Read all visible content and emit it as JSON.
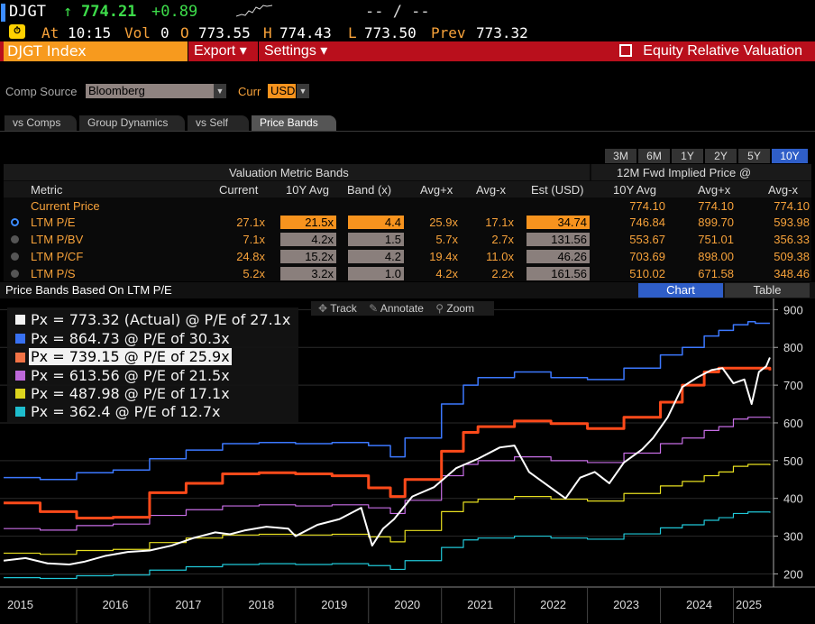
{
  "ticker": {
    "symbol": "DJGT",
    "arrow": "↑",
    "last": "774.21",
    "change": "+0.89",
    "range_text": "-- / --"
  },
  "quote": {
    "at_label": "At",
    "time": "10:15",
    "vol_label": "Vol",
    "vol": "0",
    "o_label": "O",
    "open": "773.55",
    "h_label": "H",
    "high": "774.43",
    "l_label": "L",
    "low": "773.50",
    "prev_label": "Prev",
    "prev": "773.32"
  },
  "menu": {
    "title": "DJGT Index",
    "export": "Export ▾",
    "settings": "Settings ▾",
    "function_name": "Equity Relative Valuation"
  },
  "filters": {
    "comp_source_label": "Comp Source",
    "comp_source": "Bloomberg",
    "curr_label": "Curr",
    "curr": "USD"
  },
  "tabs": [
    "vs Comps",
    "Group Dynamics",
    "vs Self",
    "Price Bands"
  ],
  "periods": [
    "3M",
    "6M",
    "1Y",
    "2Y",
    "5Y",
    "10Y"
  ],
  "table": {
    "group1": "Valuation Metric Bands",
    "group2": "12M Fwd Implied Price @",
    "headers": [
      "Metric",
      "Current",
      "10Y Avg",
      "Band (x)",
      "Avg+x",
      "Avg-x",
      "Est (USD)",
      "10Y Avg",
      "Avg+x",
      "Avg-x"
    ],
    "current_price": {
      "label": "Current Price",
      "v1": "774.10",
      "v2": "774.10",
      "v3": "774.10"
    },
    "rows": [
      {
        "metric": "LTM P/E",
        "current": "27.1x",
        "avg": "21.5x",
        "band": "4.4",
        "plus": "25.9x",
        "minus": "17.1x",
        "est": "34.74",
        "p_avg": "746.84",
        "p_plus": "899.70",
        "p_minus": "593.98"
      },
      {
        "metric": "LTM P/BV",
        "current": "7.1x",
        "avg": "4.2x",
        "band": "1.5",
        "plus": "5.7x",
        "minus": "2.7x",
        "est": "131.56",
        "p_avg": "553.67",
        "p_plus": "751.01",
        "p_minus": "356.33"
      },
      {
        "metric": "LTM P/CF",
        "current": "24.8x",
        "avg": "15.2x",
        "band": "4.2",
        "plus": "19.4x",
        "minus": "11.0x",
        "est": "46.26",
        "p_avg": "703.69",
        "p_plus": "898.00",
        "p_minus": "509.38"
      },
      {
        "metric": "LTM P/S",
        "current": "5.2x",
        "avg": "3.2x",
        "band": "1.0",
        "plus": "4.2x",
        "minus": "2.2x",
        "est": "161.56",
        "p_avg": "510.02",
        "p_plus": "671.58",
        "p_minus": "348.46"
      }
    ]
  },
  "chart_header": {
    "title": "Price Bands Based On LTM P/E",
    "chart_btn": "Chart",
    "table_btn": "Table"
  },
  "toolbar": {
    "track": "Track",
    "annotate": "Annotate",
    "zoom": "Zoom"
  },
  "colors": {
    "orange": "#f7931e",
    "red_bar": "#b90f1c",
    "blue_sel": "#2f5ec8",
    "amber": "#f7a23a"
  },
  "chart_data": {
    "type": "line",
    "ylim": [
      170,
      920
    ],
    "yticks": [
      200,
      300,
      400,
      500,
      600,
      700,
      800,
      900
    ],
    "xlim": [
      2014.95,
      2025.55
    ],
    "xticks": [
      "2015",
      "2016",
      "2017",
      "2018",
      "2019",
      "2020",
      "2021",
      "2022",
      "2023",
      "2024",
      "2025"
    ],
    "legend": [
      {
        "text": "Px = 773.32 (Actual) @ P/E of 27.1x",
        "color": "#ffffff"
      },
      {
        "text": "Px = 864.73 @ P/E of 30.3x",
        "color": "#3c78ff"
      },
      {
        "text": "Px = 739.15 @ P/E of 25.9x",
        "color": "#ff4a1a"
      },
      {
        "text": "Px = 613.56 @ P/E of 21.5x",
        "color": "#c86ee6"
      },
      {
        "text": "Px = 487.98 @ P/E of 17.1x",
        "color": "#e8e020"
      },
      {
        "text": "Px = 362.4 @ P/E of 12.7x",
        "color": "#20c8d8"
      }
    ],
    "series": [
      {
        "color": "#3c78ff",
        "width": 1.5,
        "x": [
          2015.0,
          2015.5,
          2016.0,
          2016.5,
          2017.0,
          2017.5,
          2018.0,
          2018.5,
          2019.0,
          2019.5,
          2020.0,
          2020.3,
          2020.5,
          2021.0,
          2021.3,
          2021.5,
          2022.0,
          2022.5,
          2023.0,
          2023.5,
          2024.0,
          2024.3,
          2024.6,
          2024.8,
          2025.0,
          2025.2,
          2025.3,
          2025.5
        ],
        "values": [
          455,
          450,
          468,
          475,
          505,
          528,
          545,
          548,
          545,
          548,
          540,
          510,
          560,
          650,
          700,
          720,
          735,
          720,
          715,
          745,
          780,
          800,
          830,
          845,
          860,
          868,
          864,
          864
        ]
      },
      {
        "color": "#c86ee6",
        "width": 1.2,
        "x": [
          2015.0,
          2015.5,
          2016.0,
          2016.5,
          2017.0,
          2017.5,
          2018.0,
          2018.5,
          2019.0,
          2019.5,
          2020.0,
          2020.3,
          2020.5,
          2021.0,
          2021.3,
          2021.5,
          2022.0,
          2022.5,
          2023.0,
          2023.5,
          2024.0,
          2024.3,
          2024.6,
          2024.8,
          2025.0,
          2025.2,
          2025.5
        ],
        "values": [
          320,
          316,
          328,
          332,
          355,
          370,
          380,
          383,
          380,
          383,
          375,
          360,
          395,
          460,
          490,
          500,
          510,
          500,
          495,
          520,
          545,
          560,
          580,
          590,
          610,
          615,
          613
        ]
      },
      {
        "color": "#e8e020",
        "width": 1.2,
        "x": [
          2015.0,
          2015.5,
          2016.0,
          2016.5,
          2017.0,
          2017.5,
          2018.0,
          2018.5,
          2019.0,
          2019.5,
          2020.0,
          2020.3,
          2020.5,
          2021.0,
          2021.3,
          2021.5,
          2022.0,
          2022.5,
          2023.0,
          2023.5,
          2024.0,
          2024.3,
          2024.6,
          2024.8,
          2025.0,
          2025.2,
          2025.5
        ],
        "values": [
          255,
          252,
          262,
          265,
          283,
          295,
          303,
          305,
          303,
          305,
          298,
          285,
          315,
          365,
          390,
          398,
          405,
          398,
          393,
          413,
          433,
          445,
          460,
          470,
          485,
          490,
          488
        ]
      },
      {
        "color": "#20c8d8",
        "width": 1.2,
        "x": [
          2015.0,
          2015.5,
          2016.0,
          2016.5,
          2017.0,
          2017.5,
          2018.0,
          2018.5,
          2019.0,
          2019.5,
          2020.0,
          2020.3,
          2020.5,
          2021.0,
          2021.3,
          2021.5,
          2022.0,
          2022.5,
          2023.0,
          2023.5,
          2024.0,
          2024.3,
          2024.6,
          2024.8,
          2025.0,
          2025.2,
          2025.5
        ],
        "values": [
          190,
          188,
          195,
          197,
          210,
          219,
          225,
          227,
          225,
          227,
          222,
          212,
          235,
          270,
          290,
          295,
          300,
          295,
          292,
          306,
          322,
          330,
          342,
          349,
          360,
          364,
          362
        ]
      },
      {
        "color": "#ff4a1a",
        "width": 3,
        "x": [
          2015.0,
          2015.5,
          2016.0,
          2016.5,
          2017.0,
          2017.5,
          2018.0,
          2018.5,
          2019.0,
          2019.5,
          2020.0,
          2020.3,
          2020.5,
          2021.0,
          2021.3,
          2021.5,
          2022.0,
          2022.5,
          2023.0,
          2023.5,
          2024.0,
          2024.3,
          2024.6,
          2024.8,
          2025.0,
          2025.2,
          2025.5
        ],
        "values": [
          388,
          365,
          348,
          350,
          415,
          440,
          465,
          468,
          465,
          460,
          428,
          405,
          450,
          525,
          575,
          590,
          605,
          598,
          585,
          615,
          655,
          700,
          735,
          745,
          745,
          745,
          739
        ]
      },
      {
        "color": "#ffffff",
        "width": 2,
        "x": [
          2015.0,
          2015.3,
          2015.6,
          2015.9,
          2016.1,
          2016.4,
          2016.7,
          2017.0,
          2017.3,
          2017.6,
          2017.9,
          2018.1,
          2018.3,
          2018.6,
          2018.9,
          2019.0,
          2019.3,
          2019.6,
          2019.9,
          2020.05,
          2020.2,
          2020.35,
          2020.6,
          2020.9,
          2021.2,
          2021.5,
          2021.8,
          2022.0,
          2022.2,
          2022.45,
          2022.7,
          2022.9,
          2023.1,
          2023.3,
          2023.5,
          2023.75,
          2023.9,
          2024.1,
          2024.3,
          2024.5,
          2024.7,
          2024.85,
          2025.0,
          2025.15,
          2025.25,
          2025.35,
          2025.45,
          2025.5
        ],
        "values": [
          235,
          242,
          228,
          225,
          232,
          248,
          258,
          262,
          275,
          295,
          310,
          305,
          315,
          325,
          320,
          300,
          330,
          345,
          375,
          275,
          320,
          345,
          405,
          430,
          480,
          505,
          535,
          540,
          470,
          435,
          400,
          455,
          470,
          440,
          495,
          530,
          560,
          615,
          695,
          720,
          740,
          745,
          705,
          715,
          650,
          735,
          750,
          773
        ]
      }
    ]
  }
}
